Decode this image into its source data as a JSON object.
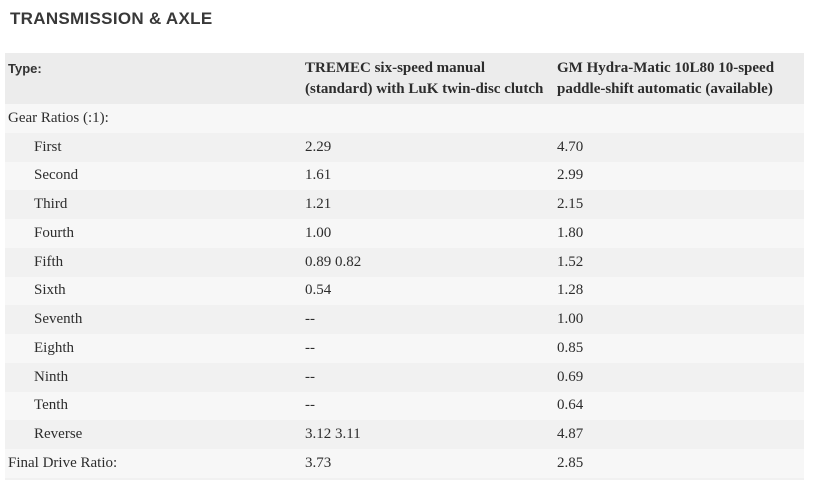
{
  "section": {
    "title": "TRANSMISSION & AXLE"
  },
  "table": {
    "header": {
      "label": "Type:",
      "manual": "TREMEC six-speed manual (standard) with LuK twin-disc clutch",
      "automatic": "GM Hydra-Matic 10L80 10-speed paddle-shift automatic (available)"
    },
    "rows": [
      {
        "label": "Gear Ratios (:1):",
        "indent": false,
        "manual": "",
        "automatic": ""
      },
      {
        "label": "First",
        "indent": true,
        "manual": "2.29",
        "automatic": "4.70"
      },
      {
        "label": "Second",
        "indent": true,
        "manual": "1.61",
        "automatic": "2.99"
      },
      {
        "label": "Third",
        "indent": true,
        "manual": "1.21",
        "automatic": "2.15"
      },
      {
        "label": "Fourth",
        "indent": true,
        "manual": "1.00",
        "automatic": "1.80"
      },
      {
        "label": "Fifth",
        "indent": true,
        "manual": "0.89 0.82",
        "automatic": "1.52"
      },
      {
        "label": "Sixth",
        "indent": true,
        "manual": "0.54",
        "automatic": "1.28"
      },
      {
        "label": "Seventh",
        "indent": true,
        "manual": "--",
        "automatic": "1.00"
      },
      {
        "label": "Eighth",
        "indent": true,
        "manual": "--",
        "automatic": "0.85"
      },
      {
        "label": "Ninth",
        "indent": true,
        "manual": "--",
        "automatic": "0.69"
      },
      {
        "label": "Tenth",
        "indent": true,
        "manual": "--",
        "automatic": "0.64"
      },
      {
        "label": "Reverse",
        "indent": true,
        "manual": "3.12 3.11",
        "automatic": "4.87"
      },
      {
        "label": "Final Drive Ratio:",
        "indent": false,
        "manual": "3.73",
        "automatic": "2.85"
      }
    ]
  },
  "colors": {
    "heading": "#383838",
    "text": "#2d2d2d",
    "header_bg": "#ececec",
    "stripe_dark": "#f1f1f1",
    "stripe_light": "#f7f7f7",
    "page_bg": "#ffffff"
  }
}
